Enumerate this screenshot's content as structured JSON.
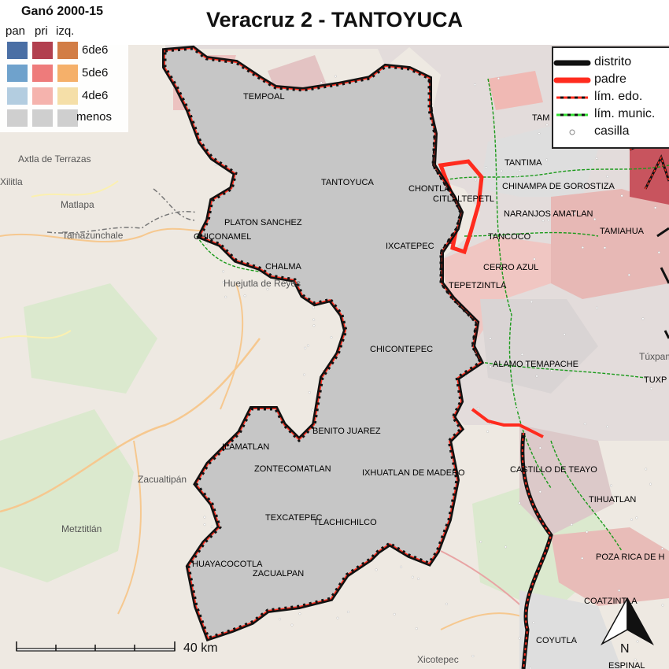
{
  "title": "Veracruz 2 - TANTOYUCA",
  "legend_left": {
    "title": "Ganó 2000-15",
    "columns": [
      "pan",
      "pri",
      "izq."
    ],
    "rows": [
      "6de6",
      "5de6",
      "4de6",
      "menos"
    ],
    "colors": {
      "pan": [
        "#4a6fa5",
        "#6fa2cc",
        "#b3cde0"
      ],
      "pri": [
        "#b2404f",
        "#ee7b7b",
        "#f5b3ad"
      ],
      "izq": [
        "#d27d46",
        "#f5b06a",
        "#f5dfa8"
      ],
      "menos": "#cfcfcf"
    }
  },
  "legend_right": {
    "items": [
      "distrito",
      "padre",
      "lím. edo.",
      "lím. munic.",
      "casilla"
    ]
  },
  "scale": {
    "label": "40 km"
  },
  "north_arrow": {
    "label": "N"
  },
  "district_municipalities": [
    "TANTOYUCA",
    "PLATON SANCHEZ",
    "CHICONAMEL",
    "CHALMA",
    "CHONTLA",
    "CITLALTEPETL",
    "IXCATEPEC",
    "TEPETZINTLA",
    "CHICONTEPEC",
    "BENITO JUAREZ",
    "ILAMATLAN",
    "ZONTECOMATLAN",
    "IXHUATLAN DE MADERO",
    "TEXCATEPEC",
    "TLACHICHILCO",
    "HUAYACOCOTLA",
    "ZACUALPAN"
  ],
  "neighbor_municipalities": [
    "TEMPOAL",
    "TAMPICO ALTO",
    "TANTIMA",
    "CHINAMPA DE GOROSTIZA",
    "NARANJOS AMATLAN",
    "TANCOCO",
    "TAMIAHUA",
    "CERRO AZUL",
    "ALAMO TEMAPACHE",
    "TUXPAN",
    "CASTILLO DE TEAYO",
    "TIHUATLAN",
    "POZA RICA DE HIDALGO",
    "COATZINTLA",
    "COYUTLA",
    "ESPINAL"
  ],
  "neighbor_labels_shown": {
    "TAMPICO ALTO": "TAM",
    "TUXPAN": "TUXP",
    "POZA RICA DE HIDALGO": "POZA RICA DE H",
    "COATZINTLA": "COATZINTLA",
    "ESPINAL": "ESPINAL"
  },
  "basemap_places": [
    "Axtla de Terrazas",
    "Xilitla",
    "Matlapa",
    "Tamazunchale",
    "Huejutla de Reyes",
    "Zacualtipán",
    "Metztitlán",
    "Xicotepec",
    "Túxpam"
  ]
}
